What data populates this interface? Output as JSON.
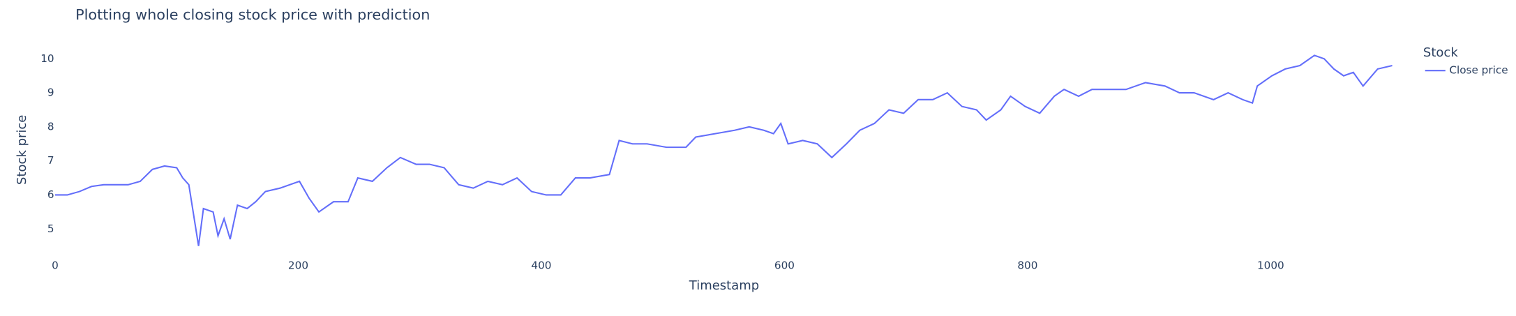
{
  "chart_data": {
    "type": "line",
    "title": "Plotting whole closing stock price with prediction",
    "x_label": "Timestamp",
    "y_label": "Stock price",
    "legend_title": "Stock",
    "x": [
      0,
      10,
      20,
      30,
      40,
      50,
      60,
      70,
      80,
      90,
      100,
      105,
      110,
      118,
      122,
      130,
      134,
      139,
      144,
      150,
      158,
      165,
      173,
      185,
      201,
      209,
      217,
      229,
      241,
      249,
      261,
      273,
      284,
      297,
      308,
      320,
      332,
      344,
      356,
      368,
      380,
      392,
      404,
      416,
      428,
      440,
      456,
      464,
      475,
      487,
      503,
      519,
      527,
      543,
      559,
      571,
      583,
      591,
      597,
      603,
      615,
      627,
      639,
      651,
      662,
      674,
      686,
      698,
      710,
      722,
      734,
      746,
      758,
      766,
      778,
      786,
      798,
      810,
      822,
      830,
      842,
      853,
      865,
      881,
      897,
      913,
      925,
      937,
      953,
      965,
      977,
      985,
      989,
      1001,
      1012,
      1024,
      1036,
      1044,
      1052,
      1060,
      1068,
      1076,
      1088,
      1100
    ],
    "series": [
      {
        "name": "Close price",
        "color": "#636efa",
        "values": [
          6.0,
          6.0,
          6.1,
          6.25,
          6.3,
          6.3,
          6.3,
          6.4,
          6.75,
          6.85,
          6.8,
          6.5,
          6.3,
          4.5,
          5.6,
          5.5,
          4.8,
          5.3,
          4.7,
          5.7,
          5.6,
          5.8,
          6.1,
          6.2,
          6.4,
          5.9,
          5.5,
          5.8,
          5.8,
          6.5,
          6.4,
          6.8,
          7.1,
          6.9,
          6.9,
          6.8,
          6.3,
          6.2,
          6.4,
          6.3,
          6.5,
          6.1,
          6.0,
          6.0,
          6.5,
          6.5,
          6.6,
          7.6,
          7.5,
          7.5,
          7.4,
          7.4,
          7.7,
          7.8,
          7.9,
          8.0,
          7.9,
          7.8,
          8.1,
          7.5,
          7.6,
          7.5,
          7.1,
          7.5,
          7.9,
          8.1,
          8.5,
          8.4,
          8.8,
          8.8,
          9.0,
          8.6,
          8.5,
          8.2,
          8.5,
          8.9,
          8.6,
          8.4,
          8.9,
          9.1,
          8.9,
          9.1,
          9.1,
          9.1,
          9.3,
          9.2,
          9.0,
          9.0,
          8.8,
          9.0,
          8.8,
          8.7,
          9.2,
          9.5,
          9.7,
          9.8,
          10.1,
          10.0,
          9.7,
          9.5,
          9.6,
          9.2,
          9.7,
          9.8
        ]
      }
    ],
    "xlim": [
      0,
      1100
    ],
    "ylim": [
      4.4,
      10.25
    ],
    "xticks": [
      0,
      200,
      400,
      600,
      800,
      1000
    ],
    "yticks": [
      5,
      6,
      7,
      8,
      9,
      10
    ]
  }
}
